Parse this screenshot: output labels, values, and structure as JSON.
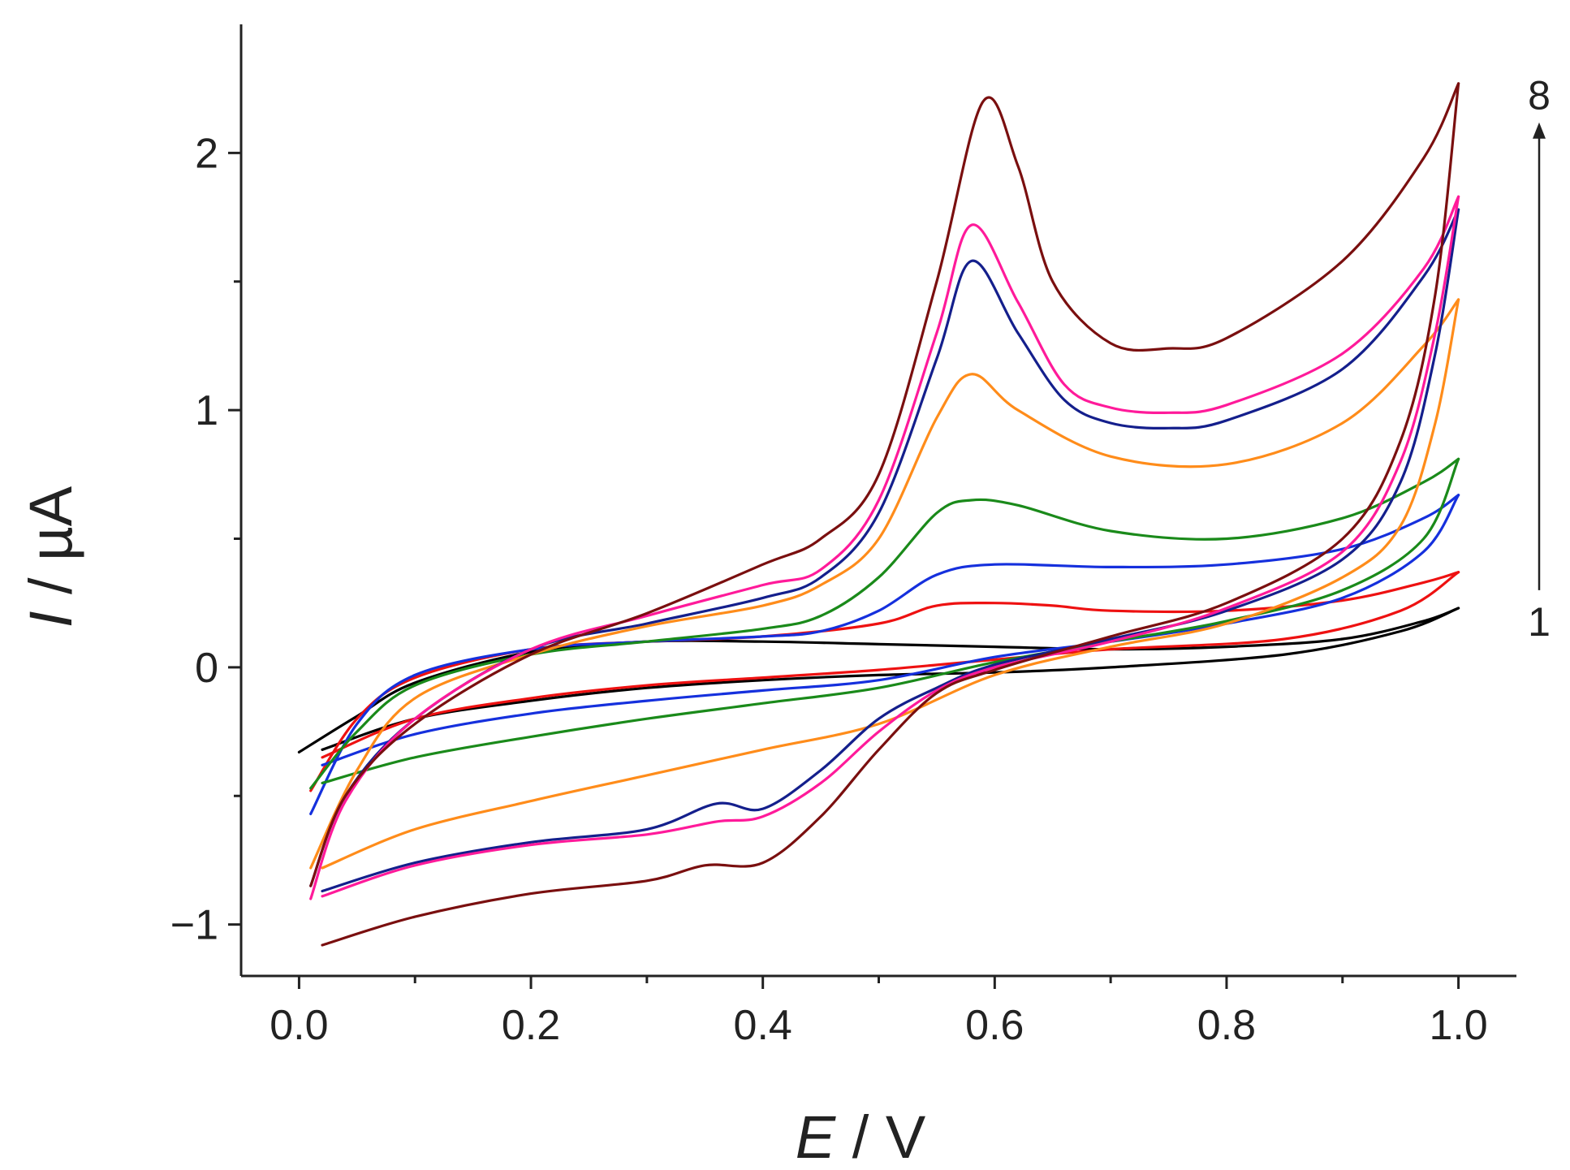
{
  "chart_data": {
    "type": "line",
    "title": "",
    "xlabel": {
      "symbol": "E",
      "unit": " / V"
    },
    "ylabel": {
      "symbol": "I",
      "unit": " / µA"
    },
    "xlim": [
      -0.05,
      1.05
    ],
    "ylim": [
      -1.2,
      2.5
    ],
    "x_ticks": [
      {
        "value": 0.0,
        "label": "0.0"
      },
      {
        "value": 0.2,
        "label": "0.2"
      },
      {
        "value": 0.4,
        "label": "0.4"
      },
      {
        "value": 0.6,
        "label": "0.6"
      },
      {
        "value": 0.8,
        "label": "0.8"
      },
      {
        "value": 1.0,
        "label": "1.0"
      }
    ],
    "x_minor_ticks": [
      0.1,
      0.3,
      0.5,
      0.7,
      0.9
    ],
    "y_ticks": [
      {
        "value": -1,
        "label": "−1"
      },
      {
        "value": 0,
        "label": "0"
      },
      {
        "value": 1,
        "label": "1"
      },
      {
        "value": 2,
        "label": "2"
      }
    ],
    "y_minor_ticks": [
      -0.5,
      0.5,
      1.5
    ],
    "annotation": {
      "from_label": "1",
      "to_label": "8",
      "from_y": 0.3,
      "to_y": 2.1
    },
    "series": [
      {
        "name": "1",
        "color": "#000000",
        "forward": [
          [
            0.0,
            -0.33
          ],
          [
            0.05,
            -0.19
          ],
          [
            0.1,
            -0.06
          ],
          [
            0.2,
            0.06
          ],
          [
            0.3,
            0.1
          ],
          [
            0.4,
            0.1
          ],
          [
            0.5,
            0.09
          ],
          [
            0.6,
            0.08
          ],
          [
            0.7,
            0.07
          ],
          [
            0.8,
            0.08
          ],
          [
            0.9,
            0.11
          ],
          [
            0.97,
            0.18
          ],
          [
            1.0,
            0.23
          ]
        ],
        "reverse": [
          [
            1.0,
            0.23
          ],
          [
            0.95,
            0.14
          ],
          [
            0.85,
            0.05
          ],
          [
            0.7,
            0.0
          ],
          [
            0.6,
            -0.02
          ],
          [
            0.5,
            -0.03
          ],
          [
            0.4,
            -0.05
          ],
          [
            0.3,
            -0.08
          ],
          [
            0.2,
            -0.13
          ],
          [
            0.1,
            -0.2
          ],
          [
            0.02,
            -0.32
          ]
        ]
      },
      {
        "name": "2",
        "color": "#ee1111",
        "forward": [
          [
            0.01,
            -0.48
          ],
          [
            0.05,
            -0.2
          ],
          [
            0.1,
            -0.04
          ],
          [
            0.2,
            0.07
          ],
          [
            0.3,
            0.1
          ],
          [
            0.4,
            0.12
          ],
          [
            0.5,
            0.17
          ],
          [
            0.55,
            0.24
          ],
          [
            0.6,
            0.25
          ],
          [
            0.65,
            0.24
          ],
          [
            0.7,
            0.22
          ],
          [
            0.8,
            0.22
          ],
          [
            0.9,
            0.26
          ],
          [
            0.97,
            0.33
          ],
          [
            1.0,
            0.37
          ]
        ],
        "reverse": [
          [
            1.0,
            0.37
          ],
          [
            0.95,
            0.22
          ],
          [
            0.85,
            0.11
          ],
          [
            0.7,
            0.07
          ],
          [
            0.6,
            0.03
          ],
          [
            0.5,
            -0.01
          ],
          [
            0.4,
            -0.04
          ],
          [
            0.3,
            -0.07
          ],
          [
            0.2,
            -0.12
          ],
          [
            0.1,
            -0.2
          ],
          [
            0.02,
            -0.35
          ]
        ]
      },
      {
        "name": "3",
        "color": "#1530dd",
        "forward": [
          [
            0.01,
            -0.57
          ],
          [
            0.05,
            -0.22
          ],
          [
            0.1,
            -0.03
          ],
          [
            0.2,
            0.07
          ],
          [
            0.3,
            0.1
          ],
          [
            0.4,
            0.12
          ],
          [
            0.45,
            0.14
          ],
          [
            0.5,
            0.22
          ],
          [
            0.55,
            0.36
          ],
          [
            0.6,
            0.4
          ],
          [
            0.7,
            0.39
          ],
          [
            0.8,
            0.4
          ],
          [
            0.9,
            0.46
          ],
          [
            0.97,
            0.58
          ],
          [
            1.0,
            0.67
          ]
        ],
        "reverse": [
          [
            1.0,
            0.67
          ],
          [
            0.97,
            0.45
          ],
          [
            0.9,
            0.27
          ],
          [
            0.8,
            0.17
          ],
          [
            0.7,
            0.1
          ],
          [
            0.6,
            0.04
          ],
          [
            0.5,
            -0.05
          ],
          [
            0.4,
            -0.09
          ],
          [
            0.3,
            -0.13
          ],
          [
            0.2,
            -0.18
          ],
          [
            0.1,
            -0.26
          ],
          [
            0.02,
            -0.38
          ]
        ]
      },
      {
        "name": "4",
        "color": "#1a8a1a",
        "forward": [
          [
            0.01,
            -0.47
          ],
          [
            0.05,
            -0.25
          ],
          [
            0.1,
            -0.07
          ],
          [
            0.2,
            0.05
          ],
          [
            0.3,
            0.1
          ],
          [
            0.4,
            0.15
          ],
          [
            0.45,
            0.2
          ],
          [
            0.5,
            0.35
          ],
          [
            0.55,
            0.6
          ],
          [
            0.58,
            0.65
          ],
          [
            0.62,
            0.63
          ],
          [
            0.7,
            0.53
          ],
          [
            0.8,
            0.5
          ],
          [
            0.9,
            0.58
          ],
          [
            0.97,
            0.72
          ],
          [
            1.0,
            0.81
          ]
        ],
        "reverse": [
          [
            1.0,
            0.81
          ],
          [
            0.97,
            0.5
          ],
          [
            0.9,
            0.3
          ],
          [
            0.8,
            0.18
          ],
          [
            0.7,
            0.1
          ],
          [
            0.6,
            0.02
          ],
          [
            0.5,
            -0.08
          ],
          [
            0.4,
            -0.14
          ],
          [
            0.3,
            -0.2
          ],
          [
            0.2,
            -0.27
          ],
          [
            0.1,
            -0.35
          ],
          [
            0.02,
            -0.45
          ]
        ]
      },
      {
        "name": "5",
        "color": "#ff8c1a",
        "forward": [
          [
            0.01,
            -0.78
          ],
          [
            0.05,
            -0.4
          ],
          [
            0.1,
            -0.12
          ],
          [
            0.2,
            0.05
          ],
          [
            0.3,
            0.16
          ],
          [
            0.4,
            0.24
          ],
          [
            0.45,
            0.32
          ],
          [
            0.5,
            0.5
          ],
          [
            0.55,
            0.97
          ],
          [
            0.58,
            1.14
          ],
          [
            0.62,
            1.0
          ],
          [
            0.7,
            0.82
          ],
          [
            0.8,
            0.79
          ],
          [
            0.9,
            0.95
          ],
          [
            0.97,
            1.25
          ],
          [
            1.0,
            1.43
          ]
        ],
        "reverse": [
          [
            1.0,
            1.43
          ],
          [
            0.98,
            0.95
          ],
          [
            0.95,
            0.55
          ],
          [
            0.9,
            0.35
          ],
          [
            0.8,
            0.17
          ],
          [
            0.7,
            0.08
          ],
          [
            0.6,
            -0.03
          ],
          [
            0.5,
            -0.22
          ],
          [
            0.4,
            -0.32
          ],
          [
            0.3,
            -0.42
          ],
          [
            0.2,
            -0.52
          ],
          [
            0.1,
            -0.63
          ],
          [
            0.02,
            -0.78
          ]
        ]
      },
      {
        "name": "6",
        "color": "#141f8c",
        "forward": [
          [
            0.01,
            -0.85
          ],
          [
            0.04,
            -0.5
          ],
          [
            0.1,
            -0.2
          ],
          [
            0.2,
            0.07
          ],
          [
            0.3,
            0.17
          ],
          [
            0.4,
            0.27
          ],
          [
            0.45,
            0.35
          ],
          [
            0.5,
            0.6
          ],
          [
            0.55,
            1.2
          ],
          [
            0.58,
            1.58
          ],
          [
            0.62,
            1.3
          ],
          [
            0.66,
            1.04
          ],
          [
            0.7,
            0.95
          ],
          [
            0.75,
            0.93
          ],
          [
            0.8,
            0.96
          ],
          [
            0.9,
            1.16
          ],
          [
            0.97,
            1.52
          ],
          [
            1.0,
            1.78
          ]
        ],
        "reverse": [
          [
            1.0,
            1.78
          ],
          [
            0.98,
            1.22
          ],
          [
            0.95,
            0.72
          ],
          [
            0.9,
            0.42
          ],
          [
            0.8,
            0.22
          ],
          [
            0.7,
            0.11
          ],
          [
            0.6,
            0.01
          ],
          [
            0.55,
            -0.08
          ],
          [
            0.5,
            -0.2
          ],
          [
            0.45,
            -0.4
          ],
          [
            0.4,
            -0.55
          ],
          [
            0.36,
            -0.53
          ],
          [
            0.3,
            -0.63
          ],
          [
            0.2,
            -0.68
          ],
          [
            0.1,
            -0.76
          ],
          [
            0.02,
            -0.87
          ]
        ]
      },
      {
        "name": "7",
        "color": "#ff1a9a",
        "forward": [
          [
            0.01,
            -0.9
          ],
          [
            0.04,
            -0.52
          ],
          [
            0.1,
            -0.2
          ],
          [
            0.2,
            0.07
          ],
          [
            0.3,
            0.2
          ],
          [
            0.4,
            0.32
          ],
          [
            0.45,
            0.38
          ],
          [
            0.5,
            0.65
          ],
          [
            0.55,
            1.3
          ],
          [
            0.58,
            1.72
          ],
          [
            0.62,
            1.42
          ],
          [
            0.66,
            1.1
          ],
          [
            0.7,
            1.01
          ],
          [
            0.75,
            0.99
          ],
          [
            0.8,
            1.02
          ],
          [
            0.9,
            1.22
          ],
          [
            0.97,
            1.55
          ],
          [
            1.0,
            1.83
          ]
        ],
        "reverse": [
          [
            1.0,
            1.83
          ],
          [
            0.98,
            1.3
          ],
          [
            0.95,
            0.8
          ],
          [
            0.9,
            0.45
          ],
          [
            0.8,
            0.23
          ],
          [
            0.7,
            0.1
          ],
          [
            0.6,
            0.0
          ],
          [
            0.55,
            -0.09
          ],
          [
            0.5,
            -0.25
          ],
          [
            0.45,
            -0.45
          ],
          [
            0.4,
            -0.58
          ],
          [
            0.36,
            -0.6
          ],
          [
            0.3,
            -0.65
          ],
          [
            0.2,
            -0.69
          ],
          [
            0.1,
            -0.77
          ],
          [
            0.02,
            -0.89
          ]
        ]
      },
      {
        "name": "8",
        "color": "#7a0f0f",
        "forward": [
          [
            0.01,
            -0.85
          ],
          [
            0.04,
            -0.5
          ],
          [
            0.1,
            -0.22
          ],
          [
            0.2,
            0.05
          ],
          [
            0.3,
            0.21
          ],
          [
            0.4,
            0.4
          ],
          [
            0.45,
            0.5
          ],
          [
            0.5,
            0.75
          ],
          [
            0.55,
            1.5
          ],
          [
            0.59,
            2.2
          ],
          [
            0.62,
            1.95
          ],
          [
            0.65,
            1.5
          ],
          [
            0.7,
            1.26
          ],
          [
            0.75,
            1.24
          ],
          [
            0.8,
            1.28
          ],
          [
            0.9,
            1.58
          ],
          [
            0.97,
            1.98
          ],
          [
            1.0,
            2.27
          ]
        ],
        "reverse": [
          [
            1.0,
            2.27
          ],
          [
            0.98,
            1.45
          ],
          [
            0.95,
            0.88
          ],
          [
            0.9,
            0.5
          ],
          [
            0.8,
            0.25
          ],
          [
            0.7,
            0.12
          ],
          [
            0.6,
            -0.01
          ],
          [
            0.55,
            -0.1
          ],
          [
            0.5,
            -0.32
          ],
          [
            0.45,
            -0.58
          ],
          [
            0.4,
            -0.76
          ],
          [
            0.35,
            -0.77
          ],
          [
            0.3,
            -0.83
          ],
          [
            0.2,
            -0.88
          ],
          [
            0.1,
            -0.97
          ],
          [
            0.02,
            -1.08
          ]
        ]
      }
    ]
  }
}
